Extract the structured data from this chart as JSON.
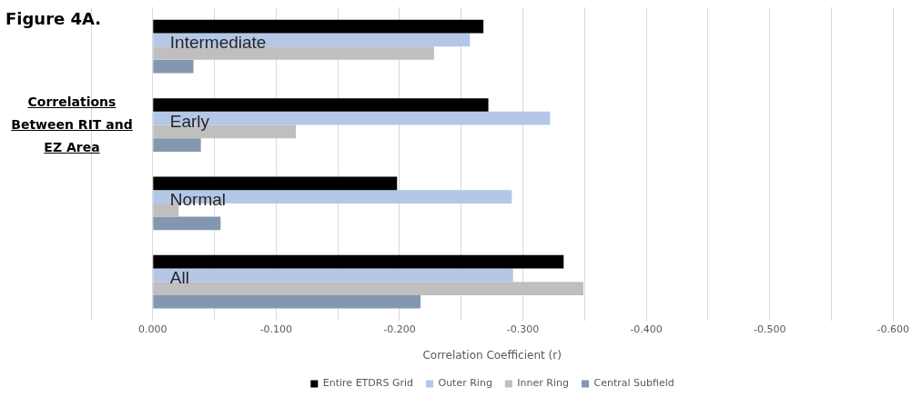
{
  "chart_data": {
    "type": "bar",
    "orientation": "horizontal",
    "title": "Figure 4A.",
    "annotations": [
      "Correlations Between RIT and EZ Area"
    ],
    "xlabel": "Correlation Coefficient (r)",
    "categories": [
      "Intermediate",
      "Early",
      "Normal",
      "All"
    ],
    "series": [
      {
        "name": "Entire ETDRS Grid",
        "color": "#000000",
        "values": [
          -0.268,
          -0.272,
          -0.198,
          -0.333
        ]
      },
      {
        "name": "Outer Ring",
        "color": "#b4c7e7",
        "values": [
          -0.257,
          -0.322,
          -0.291,
          -0.292
        ]
      },
      {
        "name": "Inner Ring",
        "color": "#bfbfbf",
        "values": [
          -0.228,
          -0.116,
          -0.021,
          -0.349
        ]
      },
      {
        "name": "Central Subfield",
        "color": "#8497b0",
        "values": [
          -0.033,
          -0.039,
          -0.055,
          -0.217
        ]
      }
    ],
    "xlim": [
      0.05,
      -0.6
    ],
    "xticks": [
      {
        "value": 0.05,
        "label": null
      },
      "0.000",
      {
        "value": -0.05,
        "label": null
      },
      {
        "value": -0.1,
        "label": "-0.100"
      },
      {
        "value": -0.15,
        "label": null
      },
      {
        "value": -0.2,
        "label": "-0.200"
      },
      {
        "value": -0.25,
        "label": null
      },
      {
        "value": -0.3,
        "label": "-0.300"
      },
      {
        "value": -0.35,
        "label": null
      },
      {
        "value": -0.4,
        "label": "-0.400"
      },
      {
        "value": -0.45,
        "label": null
      },
      {
        "value": -0.5,
        "label": "-0.500"
      },
      {
        "value": -0.55,
        "label": null
      },
      {
        "value": -0.6,
        "label": "-0.600"
      }
    ],
    "grid": "x",
    "legend": "bottom"
  }
}
